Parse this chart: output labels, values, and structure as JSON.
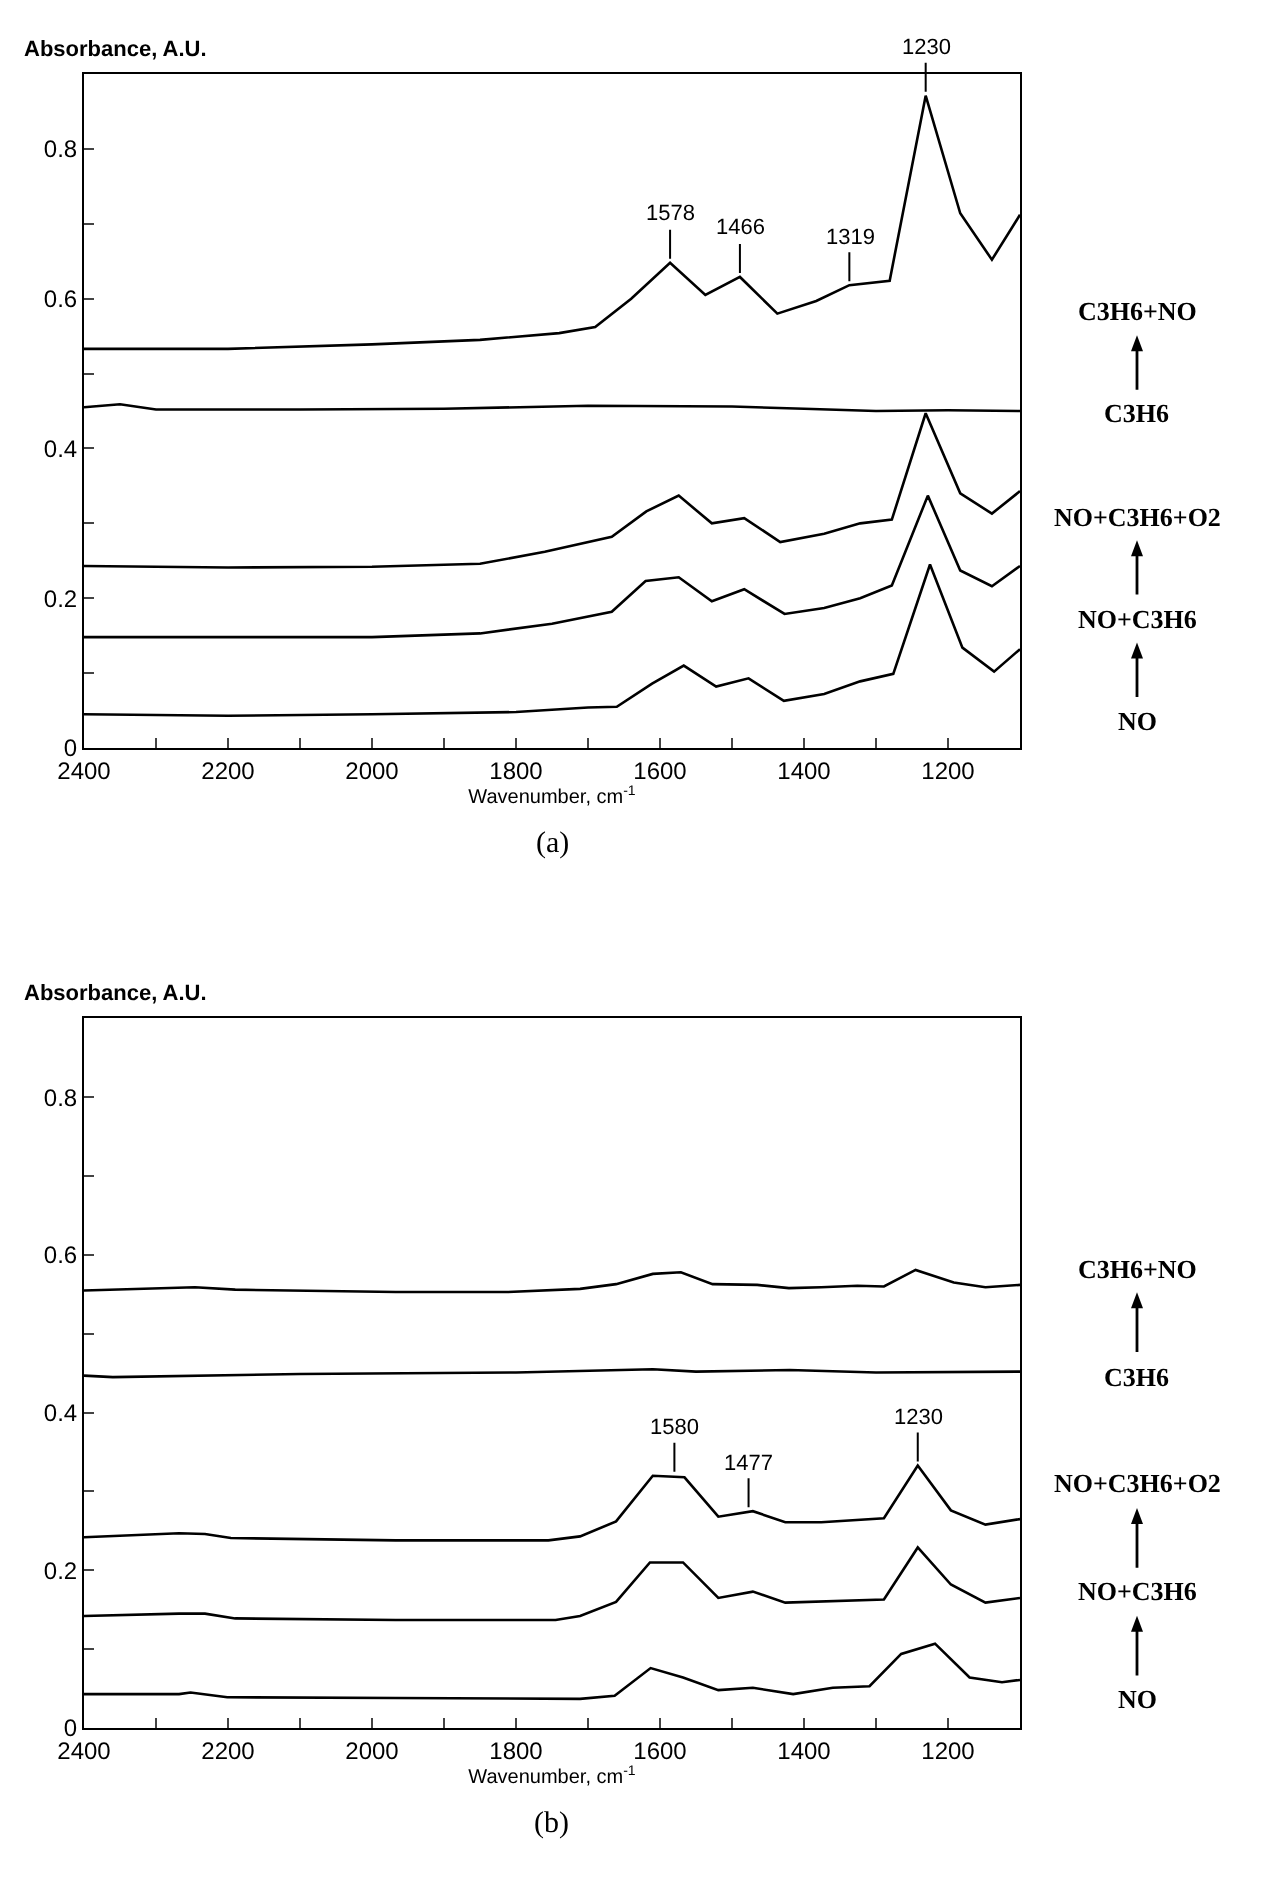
{
  "chart_data": [
    {
      "type": "line",
      "title": "(a)",
      "ylabel": "Absorbance, A.U.",
      "xlabel": "Wavenumber, cm$^{-1}$",
      "xlim": [
        2400,
        1100
      ],
      "xticks": [
        2400,
        {
          "value": 2300,
          "label": null
        },
        2200,
        {
          "value": 2100,
          "label": null
        },
        2000,
        {
          "value": 1900,
          "label": null
        },
        1800,
        {
          "value": 1700,
          "label": null
        },
        1600,
        {
          "value": 1500,
          "label": null
        },
        1400,
        {
          "value": 1300,
          "label": null
        },
        1200
      ],
      "ylim": [
        0,
        0.9
      ],
      "yticks": [
        0,
        {
          "value": 0.1,
          "label": null
        },
        0.2,
        {
          "value": 0.3,
          "label": null
        },
        0.4,
        {
          "value": 0.5,
          "label": null
        },
        0.6,
        {
          "value": 0.7,
          "label": null
        },
        0.8
      ],
      "legend": "right",
      "marker": "none",
      "line_style": "solid",
      "series": [
        {
          "name": "NO",
          "color": "#000000",
          "x": [
            2400,
            2200,
            2000,
            1800,
            1700,
            1660,
            1611,
            1567,
            1522,
            1477,
            1428,
            1372,
            1322,
            1276,
            1225,
            1180,
            1136,
            1100
          ],
          "values": [
            0.045,
            0.043,
            0.045,
            0.048,
            0.054,
            0.055,
            0.086,
            0.11,
            0.082,
            0.093,
            0.063,
            0.072,
            0.089,
            0.099,
            0.245,
            0.134,
            0.102,
            0.132
          ]
        },
        {
          "name": "NO+C3H6",
          "color": "#000000",
          "x": [
            2400,
            2200,
            2000,
            1850,
            1750,
            1667,
            1620,
            1574,
            1528,
            1483,
            1427,
            1372,
            1322,
            1278,
            1228,
            1183,
            1139,
            1100
          ],
          "values": [
            0.148,
            0.148,
            0.148,
            0.153,
            0.166,
            0.182,
            0.223,
            0.228,
            0.196,
            0.212,
            0.179,
            0.187,
            0.2,
            0.217,
            0.337,
            0.237,
            0.216,
            0.243
          ]
        },
        {
          "name": "NO+C3H6+O2",
          "color": "#000000",
          "x": [
            2400,
            2200,
            2000,
            1850,
            1760,
            1667,
            1619,
            1574,
            1528,
            1483,
            1433,
            1372,
            1322,
            1278,
            1231,
            1183,
            1139,
            1100
          ],
          "values": [
            0.243,
            0.241,
            0.242,
            0.246,
            0.262,
            0.282,
            0.316,
            0.337,
            0.3,
            0.307,
            0.275,
            0.286,
            0.3,
            0.305,
            0.447,
            0.34,
            0.313,
            0.343
          ]
        },
        {
          "name": "C3H6",
          "color": "#000000",
          "x": [
            2400,
            2350,
            2300,
            2100,
            1900,
            1700,
            1500,
            1400,
            1300,
            1200,
            1100
          ],
          "values": [
            0.455,
            0.459,
            0.452,
            0.452,
            0.453,
            0.457,
            0.456,
            0.453,
            0.45,
            0.451,
            0.45
          ]
        },
        {
          "name": "C3H6+NO",
          "color": "#000000",
          "x": [
            2400,
            2200,
            2000,
            1850,
            1740,
            1690,
            1640,
            1586,
            1537,
            1489,
            1437,
            1383,
            1337,
            1281,
            1231,
            1183,
            1139,
            1100
          ],
          "values": [
            0.533,
            0.533,
            0.539,
            0.545,
            0.554,
            0.562,
            0.6,
            0.648,
            0.605,
            0.629,
            0.58,
            0.597,
            0.618,
            0.624,
            0.871,
            0.714,
            0.652,
            0.712
          ]
        }
      ],
      "annotations": [
        {
          "text": "1578",
          "x": 1586,
          "y": 0.648
        },
        {
          "text": "1466",
          "x": 1489,
          "y": 0.629
        },
        {
          "text": "1319",
          "x": 1337,
          "y": 0.618
        },
        {
          "text": "1230",
          "x": 1231,
          "y": 0.871
        }
      ]
    },
    {
      "type": "line",
      "title": "(b)",
      "ylabel": "Absorbance, A.U.",
      "xlabel": "Wavenumber, cm$^{-1}$",
      "xlim": [
        2400,
        1100
      ],
      "xticks": [
        2400,
        {
          "value": 2300,
          "label": null
        },
        2200,
        {
          "value": 2100,
          "label": null
        },
        2000,
        {
          "value": 1900,
          "label": null
        },
        1800,
        {
          "value": 1700,
          "label": null
        },
        1600,
        {
          "value": 1500,
          "label": null
        },
        1400,
        {
          "value": 1300,
          "label": null
        },
        1200
      ],
      "ylim": [
        0,
        0.9
      ],
      "yticks": [
        0,
        {
          "value": 0.1,
          "label": null
        },
        0.2,
        {
          "value": 0.3,
          "label": null
        },
        0.4,
        {
          "value": 0.5,
          "label": null
        },
        0.6,
        {
          "value": 0.7,
          "label": null
        },
        0.8
      ],
      "legend": "right",
      "marker": "none",
      "line_style": "solid",
      "series": [
        {
          "name": "NO",
          "color": "#000000",
          "x": [
            2400,
            2268,
            2252,
            2201,
            1967,
            1711,
            1663,
            1613,
            1568,
            1519,
            1471,
            1415,
            1360,
            1309,
            1265,
            1218,
            1170,
            1125,
            1100
          ],
          "values": [
            0.043,
            0.043,
            0.045,
            0.039,
            0.038,
            0.037,
            0.041,
            0.076,
            0.064,
            0.048,
            0.051,
            0.043,
            0.051,
            0.053,
            0.094,
            0.107,
            0.064,
            0.058,
            0.061
          ]
        },
        {
          "name": "NO+C3H6",
          "color": "#000000",
          "x": [
            2400,
            2268,
            2232,
            2190,
            1967,
            1745,
            1711,
            1661,
            1614,
            1568,
            1519,
            1471,
            1426,
            1289,
            1242,
            1196,
            1148,
            1100
          ],
          "values": [
            0.142,
            0.145,
            0.145,
            0.139,
            0.137,
            0.137,
            0.142,
            0.16,
            0.21,
            0.21,
            0.165,
            0.173,
            0.159,
            0.163,
            0.229,
            0.182,
            0.159,
            0.165
          ]
        },
        {
          "name": "NO+C3H6+O2",
          "color": "#000000",
          "x": [
            2400,
            2268,
            2232,
            2196,
            1967,
            1755,
            1711,
            1661,
            1610,
            1566,
            1519,
            1471,
            1426,
            1376,
            1289,
            1242,
            1196,
            1148,
            1100
          ],
          "values": [
            0.242,
            0.247,
            0.246,
            0.241,
            0.238,
            0.238,
            0.243,
            0.262,
            0.32,
            0.318,
            0.268,
            0.275,
            0.261,
            0.261,
            0.266,
            0.333,
            0.276,
            0.258,
            0.265
          ]
        },
        {
          "name": "C3H6",
          "color": "#000000",
          "x": [
            2400,
            2360,
            2100,
            1800,
            1610,
            1550,
            1420,
            1300,
            1100
          ],
          "values": [
            0.447,
            0.445,
            0.449,
            0.451,
            0.455,
            0.452,
            0.454,
            0.451,
            0.452
          ]
        },
        {
          "name": "C3H6+NO",
          "color": "#000000",
          "x": [
            2400,
            2246,
            2190,
            1967,
            1811,
            1711,
            1661,
            1610,
            1571,
            1527,
            1465,
            1421,
            1376,
            1326,
            1289,
            1245,
            1192,
            1148,
            1100
          ],
          "values": [
            0.555,
            0.559,
            0.556,
            0.553,
            0.553,
            0.557,
            0.563,
            0.576,
            0.578,
            0.563,
            0.562,
            0.558,
            0.559,
            0.561,
            0.56,
            0.581,
            0.565,
            0.559,
            0.562
          ]
        }
      ],
      "annotations": [
        {
          "text": "1580",
          "x": 1580,
          "y": 0.32
        },
        {
          "text": "1477",
          "x": 1477,
          "y": 0.275
        },
        {
          "text": "1230",
          "x": 1242,
          "y": 0.333
        }
      ]
    }
  ]
}
